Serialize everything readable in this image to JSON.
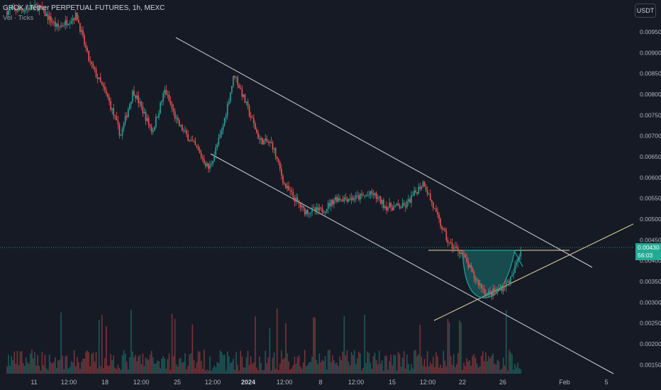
{
  "header": {
    "title": "GROK / Tether PERPETUAL FUTURES, 1h, MEXC",
    "volume_label": "Vol · Ticks"
  },
  "currency_button": "USDT",
  "last_price": {
    "price": "0.00430",
    "countdown": "56:03"
  },
  "colors": {
    "background": "#161a25",
    "up": "#26a69a",
    "down": "#ef5350",
    "price_line": "#26a69a",
    "trendline": "#d1d4dc",
    "fib_line": "#e8d9a0",
    "cup": "#1aa89a"
  },
  "chart_data": {
    "type": "candlestick",
    "ylim": [
      0.00125,
      0.01
    ],
    "y_ticks": [
      "0.00950",
      "0.00900",
      "0.00850",
      "0.00800",
      "0.00750",
      "0.00700",
      "0.00650",
      "0.00600",
      "0.00550",
      "0.00500",
      "0.00450",
      "0.00400",
      "0.00350",
      "0.00300",
      "0.00250",
      "0.00200",
      "0.00150"
    ],
    "x_ticks": [
      "11",
      "12:00",
      "18",
      "12:00",
      "25",
      "12:00",
      "2024",
      "12:00",
      "8",
      "12:00",
      "15",
      "12:00",
      "22",
      "26",
      "Feb",
      "5"
    ],
    "price_path": [
      {
        "t": 0.0,
        "p": 0.01
      },
      {
        "t": 0.05,
        "p": 0.0101
      },
      {
        "t": 0.08,
        "p": 0.0096
      },
      {
        "t": 0.11,
        "p": 0.0099
      },
      {
        "t": 0.13,
        "p": 0.0088
      },
      {
        "t": 0.16,
        "p": 0.0079
      },
      {
        "t": 0.18,
        "p": 0.007
      },
      {
        "t": 0.2,
        "p": 0.0081
      },
      {
        "t": 0.23,
        "p": 0.0071
      },
      {
        "t": 0.25,
        "p": 0.0081
      },
      {
        "t": 0.27,
        "p": 0.0073
      },
      {
        "t": 0.3,
        "p": 0.0067
      },
      {
        "t": 0.32,
        "p": 0.0062
      },
      {
        "t": 0.34,
        "p": 0.0071
      },
      {
        "t": 0.36,
        "p": 0.0085
      },
      {
        "t": 0.38,
        "p": 0.0077
      },
      {
        "t": 0.4,
        "p": 0.0069
      },
      {
        "t": 0.42,
        "p": 0.0068
      },
      {
        "t": 0.44,
        "p": 0.0058
      },
      {
        "t": 0.47,
        "p": 0.0052
      },
      {
        "t": 0.5,
        "p": 0.0052
      },
      {
        "t": 0.52,
        "p": 0.0055
      },
      {
        "t": 0.55,
        "p": 0.0055
      },
      {
        "t": 0.58,
        "p": 0.0056
      },
      {
        "t": 0.6,
        "p": 0.0053
      },
      {
        "t": 0.63,
        "p": 0.0053
      },
      {
        "t": 0.66,
        "p": 0.0059
      },
      {
        "t": 0.68,
        "p": 0.0051
      },
      {
        "t": 0.7,
        "p": 0.0044
      },
      {
        "t": 0.72,
        "p": 0.0042
      },
      {
        "t": 0.74,
        "p": 0.0036
      },
      {
        "t": 0.76,
        "p": 0.0032
      },
      {
        "t": 0.78,
        "p": 0.0033
      },
      {
        "t": 0.8,
        "p": 0.0036
      },
      {
        "t": 0.82,
        "p": 0.0046
      },
      {
        "t": 0.83,
        "p": 0.0043
      }
    ],
    "grid": false,
    "drawings": {
      "descending_channel": true,
      "cup_pattern": true,
      "horizontal_resistance": true,
      "ascending_trendline": true
    }
  }
}
